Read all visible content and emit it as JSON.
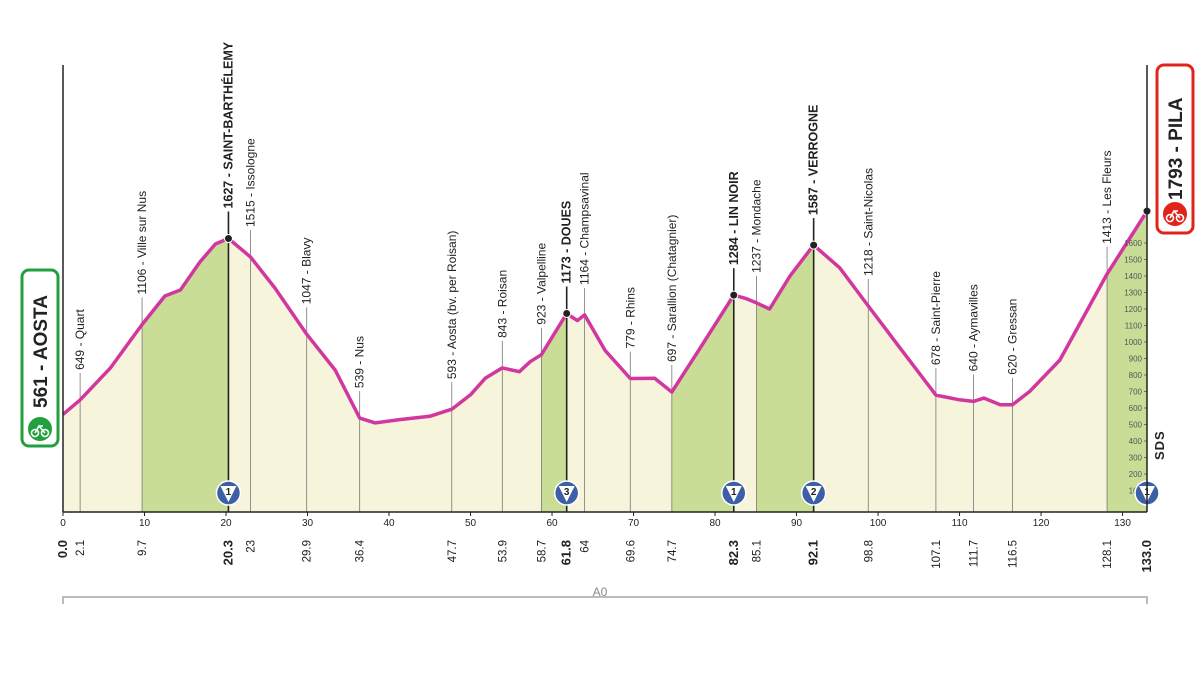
{
  "chart_data": {
    "type": "area",
    "x": [
      0,
      2.1,
      5.8,
      9.7,
      12.5,
      14.4,
      16.8,
      18.7,
      20.3,
      23.0,
      26.0,
      29.9,
      33.4,
      36.4,
      38.3,
      41.3,
      45.0,
      47.7,
      50,
      51.8,
      53.9,
      56,
      57.3,
      58.7,
      61.8,
      63.1,
      64.0,
      66.5,
      69.6,
      72.6,
      74.7,
      78,
      82.3,
      83.7,
      85.1,
      86.7,
      89.2,
      92.1,
      95.3,
      98.8,
      102,
      107.1,
      110,
      111.7,
      113,
      115,
      116.5,
      118.6,
      122.3,
      128.1,
      133.0
    ],
    "values": [
      561,
      649,
      842,
      1106,
      1279,
      1315,
      1485,
      1594,
      1627,
      1515,
      1327,
      1047,
      830,
      539,
      510,
      530,
      550,
      593,
      680,
      780,
      843,
      820,
      880,
      923,
      1173,
      1130,
      1164,
      950,
      779,
      780,
      697,
      950,
      1284,
      1265,
      1237,
      1200,
      1400,
      1587,
      1450,
      1218,
      1010,
      678,
      650,
      640,
      660,
      620,
      620,
      700,
      890,
      1413,
      1793
    ],
    "color": "#d1379f",
    "xlim": [
      0,
      133
    ],
    "xticks": [
      0,
      10,
      20,
      30,
      40,
      50,
      60,
      70,
      80,
      90,
      100,
      110,
      120,
      130
    ],
    "ylim": [
      0,
      2000
    ],
    "yticks": [
      100,
      200,
      300,
      400,
      500,
      600,
      700,
      800,
      900,
      1000,
      1100,
      1200,
      1300,
      1400,
      1500,
      1600
    ],
    "start": "561 - AOSTA",
    "finish": "1793 - PILA",
    "logo": "SDS",
    "road": "A0",
    "waypoints": [
      {
        "km": {
          "value": 0,
          "label": "0.0"
        },
        "bold": true
      },
      {
        "km": 2.1,
        "name": "649 - Quart"
      },
      {
        "km": 9.7,
        "name": "1106 - Ville sur Nus"
      },
      {
        "km": 20.3,
        "name": "1627 - SAINT-BARTHÉLEMY",
        "bold": true,
        "climb": 1
      },
      {
        "km": 23.0,
        "name": "1515 - Issologne"
      },
      {
        "km": 29.9,
        "name": "1047 - Blavy"
      },
      {
        "km": 36.4,
        "name": "539 - Nus"
      },
      {
        "km": 47.7,
        "name": "593 - Aosta (bv. per Roisan)"
      },
      {
        "km": 53.9,
        "name": "843 - Roisan"
      },
      {
        "km": 58.7,
        "name": "923 - Valpelline"
      },
      {
        "km": 61.8,
        "name": "1173 - DOUES",
        "bold": true,
        "climb": 3
      },
      {
        "km": 64.0,
        "name": "1164 - Champsavinal"
      },
      {
        "km": 69.6,
        "name": "779 - Rhins"
      },
      {
        "km": 74.7,
        "name": "697 - Sarallion (Chatagnier)"
      },
      {
        "km": 82.3,
        "name": "1284 - LIN NOIR",
        "bold": true,
        "climb": 1
      },
      {
        "km": 85.1,
        "name": "1237 - Mondache"
      },
      {
        "km": 92.1,
        "name": "1587 - VERROGNE",
        "bold": true,
        "climb": 2
      },
      {
        "km": 98.8,
        "name": "1218 - Saint-Nicolas"
      },
      {
        "km": 107.1,
        "name": "678 - Saint-Pierre"
      },
      {
        "km": 111.7,
        "name": "640 - Aymavilles"
      },
      {
        "km": 116.5,
        "name": "620 - Gressan"
      },
      {
        "km": 128.1,
        "name": "1413 - Les Fleurs"
      },
      {
        "km": {
          "value": 133,
          "label": "133.0"
        },
        "bold": true,
        "climb": 1
      }
    ]
  }
}
